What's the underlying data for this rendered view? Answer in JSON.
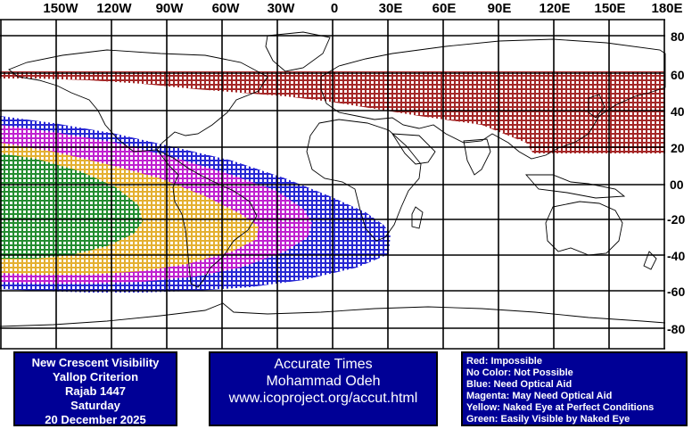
{
  "map": {
    "longitude_labels": [
      "150W",
      "120W",
      "90W",
      "60W",
      "30W",
      "0",
      "30E",
      "60E",
      "90E",
      "120E",
      "150E",
      "180E"
    ],
    "latitude_labels": [
      "80",
      "60",
      "40",
      "20",
      "00",
      "-20",
      "-40",
      "-60",
      "-80"
    ],
    "colors": {
      "impossible": "#9b1010",
      "optical_aid": "#1010d0",
      "may_need_optical_aid": "#d020d0",
      "naked_eye_perfect": "#e8c020",
      "easily_visible": "#108a30",
      "grid": "#000000",
      "coast": "#000000"
    }
  },
  "info_left": {
    "line1": "New Crescent Visibility",
    "line2": "Yallop Criterion",
    "line3": "Rajab 1447",
    "line4": "Saturday",
    "line5": "20 December 2025"
  },
  "info_mid": {
    "line1": "Accurate Times",
    "line2": "Mohammad Odeh",
    "line3": "www.icoproject.org/accut.html"
  },
  "legend": {
    "red": "Red: Impossible",
    "none": "No Color: Not Possible",
    "blue": "Blue: Need Optical Aid",
    "magenta": "Magenta: May Need Optical Aid",
    "yellow": "Yellow: Naked Eye at Perfect Conditions",
    "green": "Green: Easily Visible by Naked Eye"
  }
}
